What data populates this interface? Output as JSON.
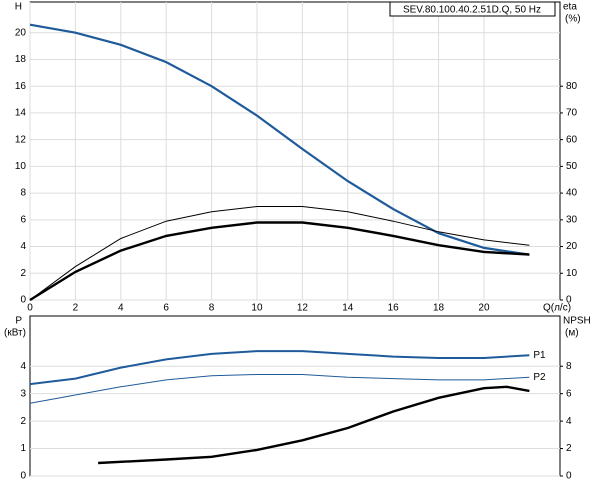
{
  "chart_data": [
    {
      "type": "line",
      "title": "SEV.80.100.40.2.51D.Q, 50 Hz",
      "ylabel": "H",
      "y2label": "eta",
      "y2unit": "(%)",
      "xlabel": "Q(л/с)",
      "x": [
        0,
        2,
        4,
        6,
        8,
        10,
        12,
        14,
        16,
        18,
        20,
        22
      ],
      "xlim": [
        0,
        23.35
      ],
      "xticks": [
        0,
        2,
        4,
        6,
        8,
        10,
        12,
        14,
        16,
        18,
        20
      ],
      "ylim": [
        0,
        22.3
      ],
      "yticks": [
        0,
        2,
        4,
        6,
        8,
        10,
        12,
        14,
        16,
        18,
        20
      ],
      "y2lim": [
        0,
        111.5
      ],
      "y2ticks": [
        0,
        10,
        20,
        30,
        40,
        50,
        60,
        70,
        80
      ],
      "grid": true,
      "series": [
        {
          "color": "#1f5b9a",
          "width": 2.2,
          "values": [
            20.6,
            20.0,
            19.1,
            17.8,
            16.0,
            13.8,
            11.3,
            8.9,
            6.8,
            5.0,
            3.9,
            3.4
          ]
        },
        {
          "color": "#000000",
          "width": 1,
          "axis": "y2",
          "values": [
            0,
            12.5,
            23,
            29.5,
            33,
            35,
            35,
            33,
            29.5,
            25.5,
            22.5,
            20.5
          ]
        },
        {
          "color": "#000000",
          "width": 2.4,
          "axis": "y2",
          "values": [
            0,
            10.5,
            18.5,
            24,
            27,
            29,
            29,
            27,
            24,
            20.5,
            18,
            17
          ]
        }
      ]
    },
    {
      "type": "line",
      "ylabel": "P",
      "yunit": "(кВт)",
      "y2label": "NPSH",
      "y2unit": "(м)",
      "x": [
        0,
        2,
        4,
        6,
        8,
        10,
        12,
        14,
        16,
        18,
        20,
        22
      ],
      "xlim": [
        0,
        23.35
      ],
      "ylim": [
        0,
        5.83
      ],
      "yticks": [
        0,
        1,
        2,
        3,
        4
      ],
      "y2lim": [
        0,
        11.66
      ],
      "y2ticks": [
        0,
        2,
        4,
        6,
        8
      ],
      "grid": true,
      "series": [
        {
          "name": "P1",
          "color": "#1f5b9a",
          "width": 2,
          "values": [
            3.35,
            3.55,
            3.95,
            4.25,
            4.45,
            4.55,
            4.55,
            4.45,
            4.35,
            4.3,
            4.3,
            4.4
          ]
        },
        {
          "name": "P2",
          "color": "#1f5b9a",
          "width": 1,
          "values": [
            2.65,
            2.95,
            3.25,
            3.5,
            3.65,
            3.7,
            3.7,
            3.6,
            3.55,
            3.5,
            3.5,
            3.6
          ]
        },
        {
          "color": "#000000",
          "width": 2.4,
          "axis": "y2",
          "x": [
            3,
            6,
            8,
            10,
            12,
            14,
            16,
            18,
            20,
            21,
            22
          ],
          "values": [
            0.95,
            1.2,
            1.4,
            1.9,
            2.6,
            3.5,
            4.7,
            5.7,
            6.4,
            6.5,
            6.2
          ]
        }
      ]
    }
  ]
}
